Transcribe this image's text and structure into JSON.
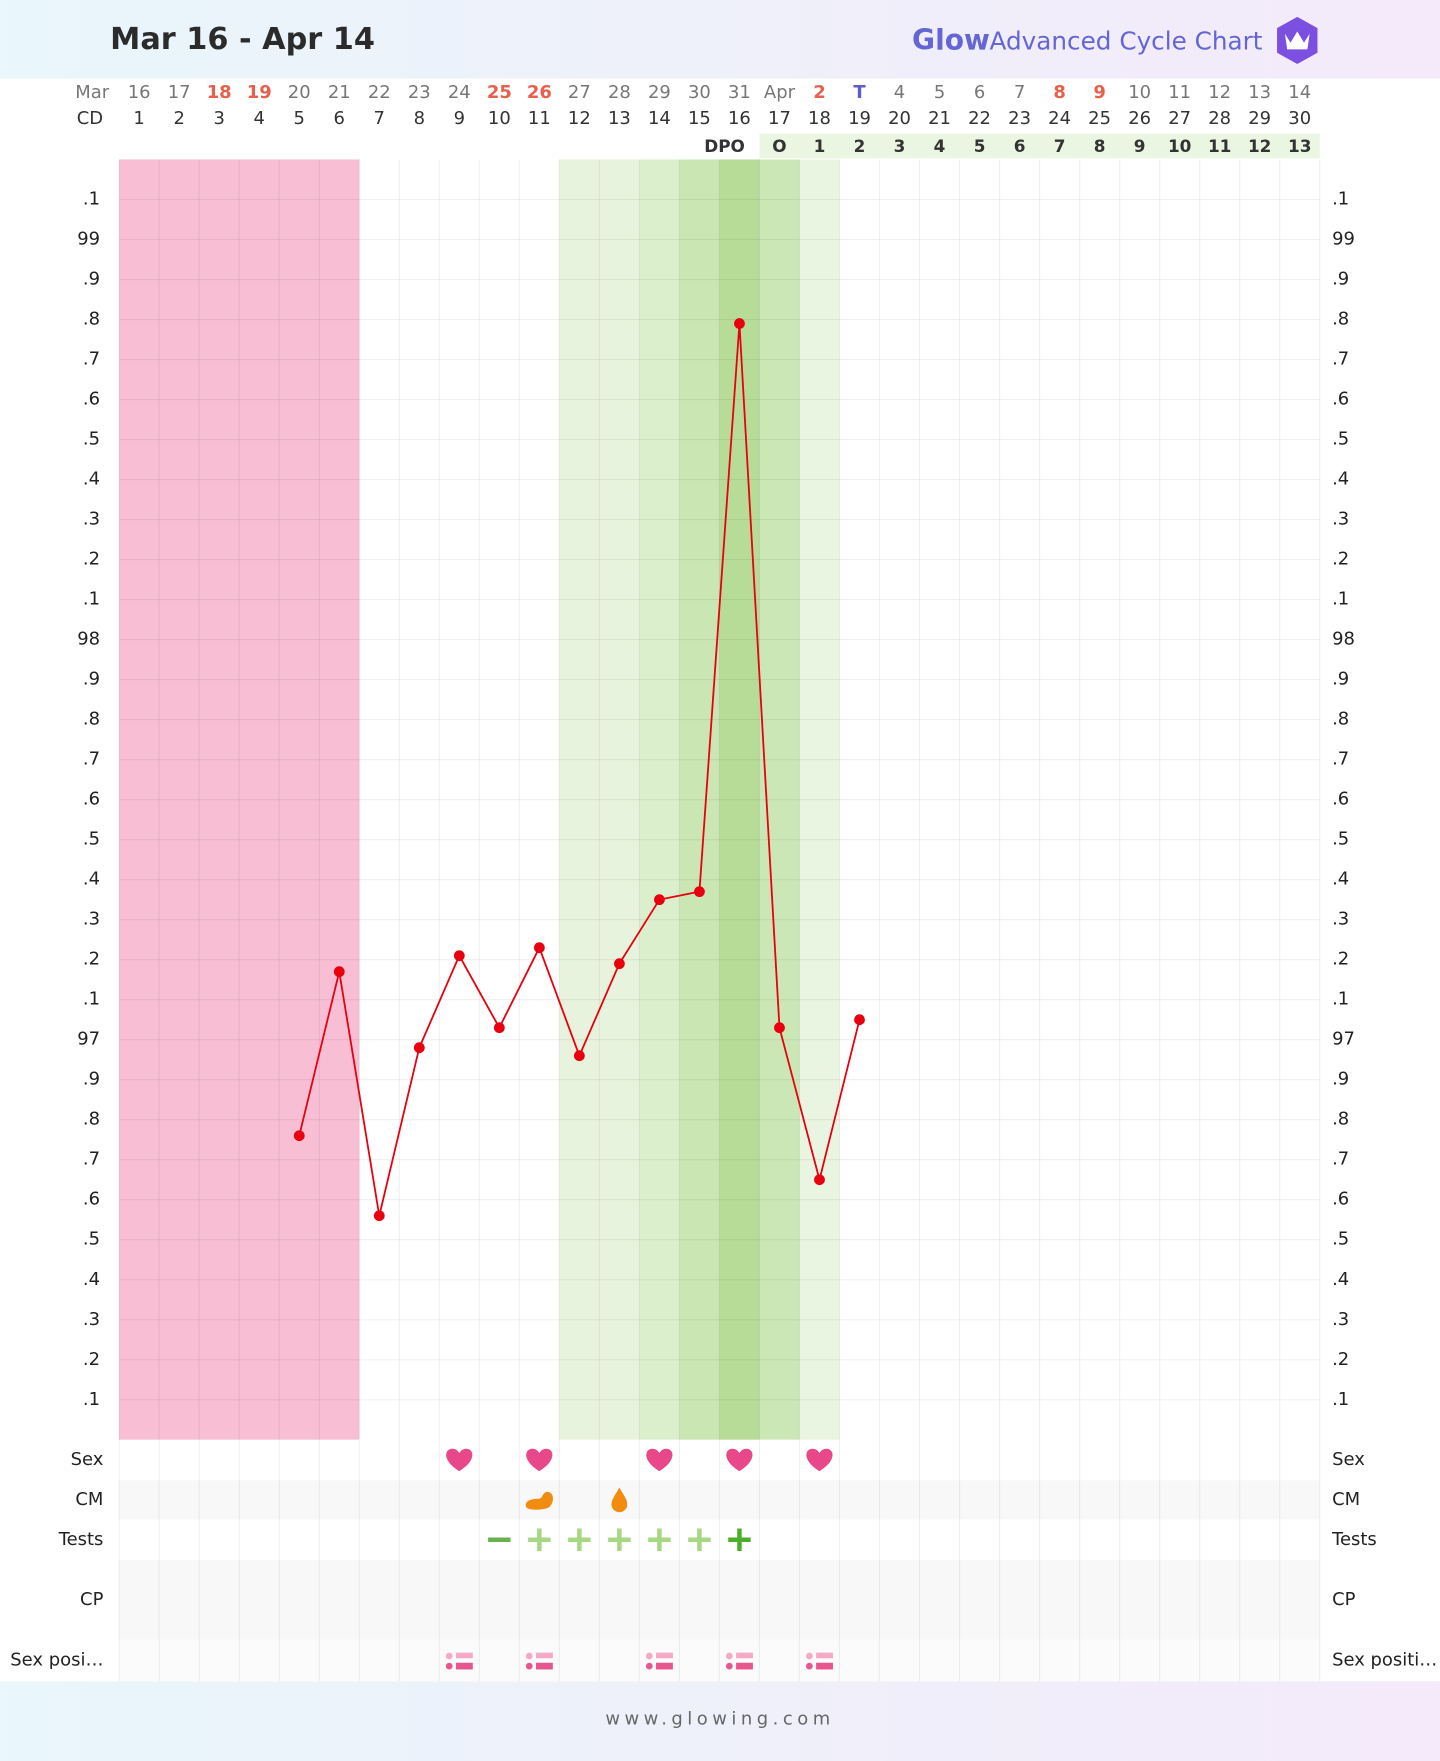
{
  "header": {
    "title": "Mar 16 - Apr 14",
    "brand": "Glow",
    "subtitle": "Advanced Cycle Chart"
  },
  "footer": {
    "url": "www.glowing.com"
  },
  "chart_data": {
    "type": "line",
    "month_label": "Mar",
    "cd_label": "CD",
    "dpo_label": "DPO",
    "dates": [
      "16",
      "17",
      "18",
      "19",
      "20",
      "21",
      "22",
      "23",
      "24",
      "25",
      "26",
      "27",
      "28",
      "29",
      "30",
      "31",
      "Apr",
      "2",
      "T",
      "4",
      "5",
      "6",
      "7",
      "8",
      "9",
      "10",
      "11",
      "12",
      "13",
      "14"
    ],
    "date_colors": [
      "#777",
      "#777",
      "#e8604c",
      "#e8604c",
      "#777",
      "#777",
      "#777",
      "#777",
      "#777",
      "#e8604c",
      "#e8604c",
      "#777",
      "#777",
      "#777",
      "#777",
      "#777",
      "#777",
      "#e8604c",
      "#5b5fc7",
      "#777",
      "#777",
      "#777",
      "#777",
      "#e8604c",
      "#e8604c",
      "#777",
      "#777",
      "#777",
      "#777",
      "#777"
    ],
    "categories": [
      1,
      2,
      3,
      4,
      5,
      6,
      7,
      8,
      9,
      10,
      11,
      12,
      13,
      14,
      15,
      16,
      17,
      18,
      19,
      20,
      21,
      22,
      23,
      24,
      25,
      26,
      27,
      28,
      29,
      30
    ],
    "dpo": [
      null,
      null,
      null,
      null,
      null,
      null,
      null,
      null,
      null,
      null,
      null,
      null,
      null,
      null,
      null,
      null,
      "O",
      1,
      2,
      3,
      4,
      5,
      6,
      7,
      8,
      9,
      10,
      11,
      12,
      13
    ],
    "series": [
      {
        "name": "Temperature",
        "color": "#e8000f",
        "values": [
          null,
          null,
          null,
          null,
          96.76,
          97.17,
          96.56,
          96.98,
          97.21,
          97.03,
          97.23,
          96.96,
          97.19,
          97.35,
          97.37,
          98.79,
          97.03,
          96.65,
          97.05,
          null,
          null,
          null,
          null,
          null,
          null,
          null,
          null,
          null,
          null,
          null
        ]
      }
    ],
    "ylim": [
      96.0,
      99.2
    ],
    "yticks": [
      {
        "value": 96.1,
        "label": ".1"
      },
      {
        "value": 96.2,
        "label": ".2"
      },
      {
        "value": 96.3,
        "label": ".3"
      },
      {
        "value": 96.4,
        "label": ".4"
      },
      {
        "value": 96.5,
        "label": ".5"
      },
      {
        "value": 96.6,
        "label": ".6"
      },
      {
        "value": 96.7,
        "label": ".7"
      },
      {
        "value": 96.8,
        "label": ".8"
      },
      {
        "value": 96.9,
        "label": ".9"
      },
      97,
      {
        "value": 97.1,
        "label": ".1"
      },
      {
        "value": 97.2,
        "label": ".2"
      },
      {
        "value": 97.3,
        "label": ".3"
      },
      {
        "value": 97.4,
        "label": ".4"
      },
      {
        "value": 97.5,
        "label": ".5"
      },
      {
        "value": 97.6,
        "label": ".6"
      },
      {
        "value": 97.7,
        "label": ".7"
      },
      {
        "value": 97.8,
        "label": ".8"
      },
      {
        "value": 97.9,
        "label": ".9"
      },
      98,
      {
        "value": 98.1,
        "label": ".1"
      },
      {
        "value": 98.2,
        "label": ".2"
      },
      {
        "value": 98.3,
        "label": ".3"
      },
      {
        "value": 98.4,
        "label": ".4"
      },
      {
        "value": 98.5,
        "label": ".5"
      },
      {
        "value": 98.6,
        "label": ".6"
      },
      {
        "value": 98.7,
        "label": ".7"
      },
      {
        "value": 98.8,
        "label": ".8"
      },
      {
        "value": 98.9,
        "label": ".9"
      },
      99,
      {
        "value": 99.1,
        "label": ".1"
      }
    ],
    "grid": true,
    "period": {
      "start": 1,
      "end": 6,
      "color": "#f7bed4"
    },
    "fertile": [
      {
        "day": 12,
        "color": "#e7f3dc"
      },
      {
        "day": 13,
        "color": "#e7f3dc"
      },
      {
        "day": 14,
        "color": "#dcefcd"
      },
      {
        "day": 15,
        "color": "#c9e6b3"
      },
      {
        "day": 16,
        "color": "#b7dc98"
      },
      {
        "day": 17,
        "color": "#cbe7b6"
      },
      {
        "day": 18,
        "color": "#e9f5e1"
      }
    ],
    "rows": [
      {
        "label": "Sex",
        "right_label": "Sex",
        "kind": "sex",
        "values": [
          null,
          null,
          null,
          null,
          null,
          null,
          null,
          null,
          true,
          null,
          true,
          null,
          null,
          true,
          null,
          true,
          null,
          true,
          null,
          null,
          null,
          null,
          null,
          null,
          null,
          null,
          null,
          null,
          null,
          null
        ]
      },
      {
        "label": "CM",
        "right_label": "CM",
        "kind": "cm",
        "values": [
          null,
          null,
          null,
          null,
          null,
          null,
          null,
          null,
          null,
          null,
          "creamy",
          null,
          "watery",
          null,
          null,
          null,
          null,
          null,
          null,
          null,
          null,
          null,
          null,
          null,
          null,
          null,
          null,
          null,
          null,
          null
        ]
      },
      {
        "label": "Tests",
        "right_label": "Tests",
        "kind": "tests",
        "values": [
          null,
          null,
          null,
          null,
          null,
          null,
          null,
          null,
          null,
          "negative",
          "positive",
          "positive",
          "positive",
          "positive",
          "positive",
          "peak",
          null,
          null,
          null,
          null,
          null,
          null,
          null,
          null,
          null,
          null,
          null,
          null,
          null,
          null
        ]
      },
      {
        "label": "CP",
        "right_label": "CP",
        "kind": "cp",
        "values": []
      },
      {
        "label": "Sex posi…",
        "right_label": "Sex positi…",
        "kind": "positions",
        "values": [
          null,
          null,
          null,
          null,
          null,
          null,
          null,
          null,
          true,
          null,
          true,
          null,
          null,
          true,
          null,
          true,
          null,
          true,
          null,
          null,
          null,
          null,
          null,
          null,
          null,
          null,
          null,
          null,
          null,
          null
        ]
      }
    ]
  }
}
